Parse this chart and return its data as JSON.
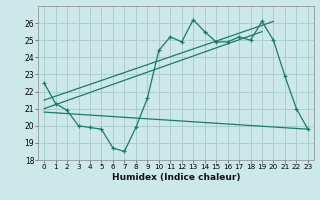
{
  "xlabel": "Humidex (Indice chaleur)",
  "background_color": "#cce8e8",
  "line_color": "#1a7a6e",
  "xlim": [
    -0.5,
    23.5
  ],
  "ylim": [
    18,
    27
  ],
  "yticks": [
    18,
    19,
    20,
    21,
    22,
    23,
    24,
    25,
    26
  ],
  "xticks": [
    0,
    1,
    2,
    3,
    4,
    5,
    6,
    7,
    8,
    9,
    10,
    11,
    12,
    13,
    14,
    15,
    16,
    17,
    18,
    19,
    20,
    21,
    22,
    23
  ],
  "grid_color": "#aacece",
  "series1_x": [
    0,
    1,
    2,
    3,
    4,
    5,
    6,
    7,
    8,
    9,
    10,
    11,
    12,
    13,
    14,
    15,
    16,
    17,
    18,
    19,
    20,
    21,
    22,
    23
  ],
  "series1_y": [
    22.5,
    21.3,
    20.9,
    20.0,
    19.9,
    19.8,
    18.7,
    18.5,
    19.9,
    21.6,
    24.4,
    25.2,
    24.9,
    26.2,
    25.5,
    24.9,
    24.9,
    25.2,
    25.0,
    26.1,
    25.0,
    22.9,
    21.0,
    19.8
  ],
  "series2_x": [
    0,
    23
  ],
  "series2_y": [
    20.8,
    19.8
  ],
  "series3_x": [
    0,
    19
  ],
  "series3_y": [
    21.0,
    25.5
  ],
  "series4_x": [
    0,
    20
  ],
  "series4_y": [
    21.5,
    26.1
  ]
}
